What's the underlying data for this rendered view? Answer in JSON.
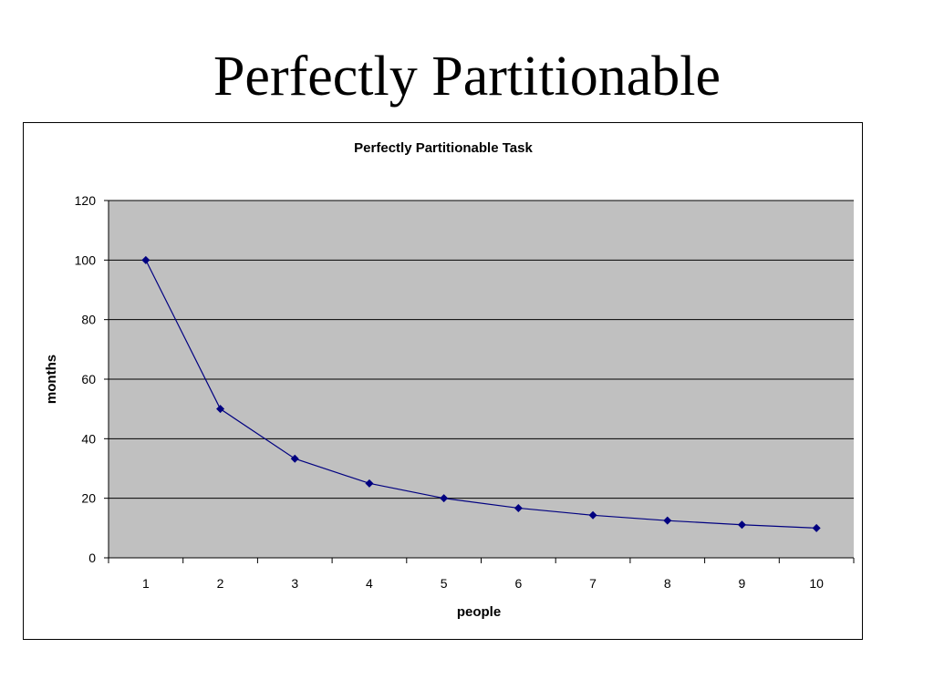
{
  "slide": {
    "title": "Perfectly Partitionable"
  },
  "chart_data": {
    "type": "line",
    "title": "Perfectly Partitionable Task",
    "xlabel": "people",
    "ylabel": "months",
    "categories": [
      "1",
      "2",
      "3",
      "4",
      "5",
      "6",
      "7",
      "8",
      "9",
      "10"
    ],
    "series": [
      {
        "values": [
          100,
          50,
          33.3,
          25,
          20,
          16.7,
          14.3,
          12.5,
          11.1,
          10
        ],
        "color": "#000080",
        "marker": "diamond"
      }
    ],
    "ylim": [
      0,
      120
    ],
    "yticks": [
      0,
      20,
      40,
      60,
      80,
      100,
      120
    ],
    "grid": true,
    "plot_background": "#c0c0c0",
    "legend": "none"
  }
}
